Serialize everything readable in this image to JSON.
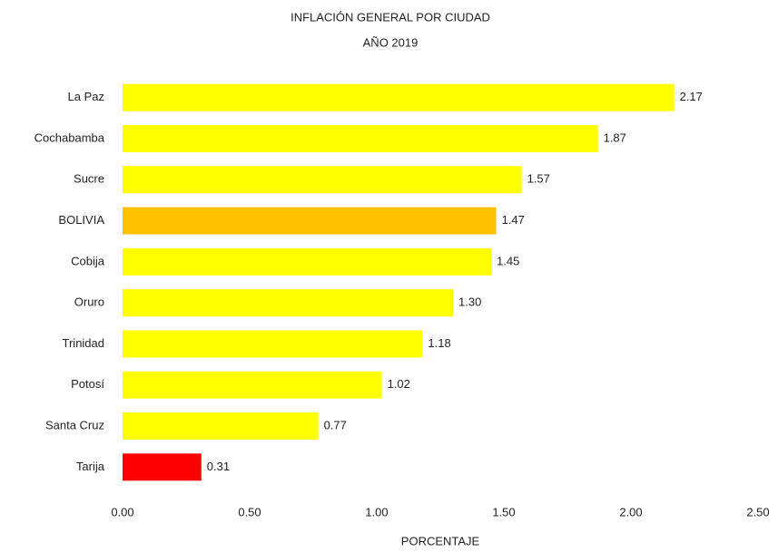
{
  "chart_data": {
    "type": "barh",
    "title": "INFLACIÓN GENERAL POR CIUDAD",
    "subtitle": "AÑO 2019",
    "x_label": "PORCENTAJE",
    "categories": [
      "La Paz",
      "Cochabamba",
      "Sucre",
      "BOLIVIA",
      "Cobija",
      "Oruro",
      "Trinidad",
      "Potosí",
      "Santa Cruz",
      "Tarija"
    ],
    "values": [
      2.17,
      1.87,
      1.57,
      1.47,
      1.45,
      1.3,
      1.18,
      1.02,
      0.77,
      0.31
    ],
    "value_labels": [
      "2.17",
      "1.87",
      "1.57",
      "1.47",
      "1.45",
      "1.30",
      "1.18",
      "1.02",
      "0.77",
      "0.31"
    ],
    "colors": [
      "#ffff00",
      "#ffff00",
      "#ffff00",
      "#ffc000",
      "#ffff00",
      "#ffff00",
      "#ffff00",
      "#ffff00",
      "#ffff00",
      "#ff0000"
    ],
    "xlim": [
      0,
      2.5
    ],
    "xticks": [
      {
        "value": 0,
        "label": "0.00"
      },
      {
        "value": 0.5,
        "label": "0.50"
      },
      {
        "value": 1,
        "label": "1.00"
      },
      {
        "value": 1.5,
        "label": "1.50"
      },
      {
        "value": 2,
        "label": "2.00"
      },
      {
        "value": 2.5,
        "label": "2.50"
      }
    ],
    "grid": false
  }
}
